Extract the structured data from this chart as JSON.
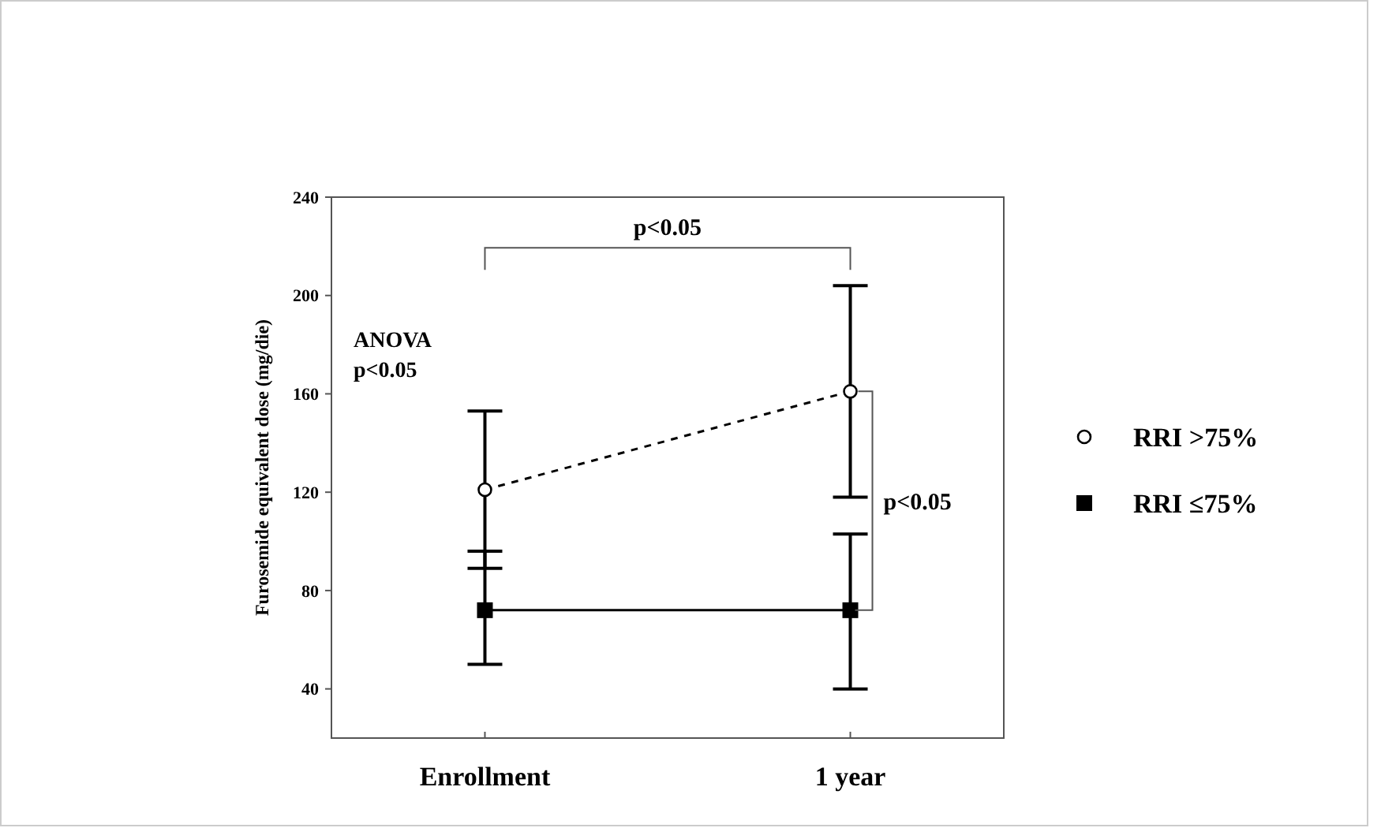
{
  "chart_data": {
    "type": "line",
    "ylabel": "Furosemide equivalent dose (mg/die)",
    "categories": [
      "Enrollment",
      "1 year"
    ],
    "series": [
      {
        "name": "RRI >75%",
        "color": "#000000",
        "values": [
          121,
          161
        ],
        "errors": [
          [
            89,
            153
          ],
          [
            118,
            204
          ]
        ],
        "marker": "circle",
        "line_style": "dashed"
      },
      {
        "name": "RRI ≤75%",
        "color": "#000000",
        "values": [
          72,
          72
        ],
        "errors": [
          [
            50,
            96
          ],
          [
            40,
            103
          ]
        ],
        "marker": "square",
        "line_style": "solid"
      }
    ],
    "ylim": [
      20,
      240
    ],
    "yticks": [
      40,
      80,
      120,
      160,
      200,
      240
    ],
    "grid": false,
    "legend": "right",
    "annotations": [
      "p<0.05",
      "ANOVA p<0.05",
      "p<0.05"
    ]
  }
}
